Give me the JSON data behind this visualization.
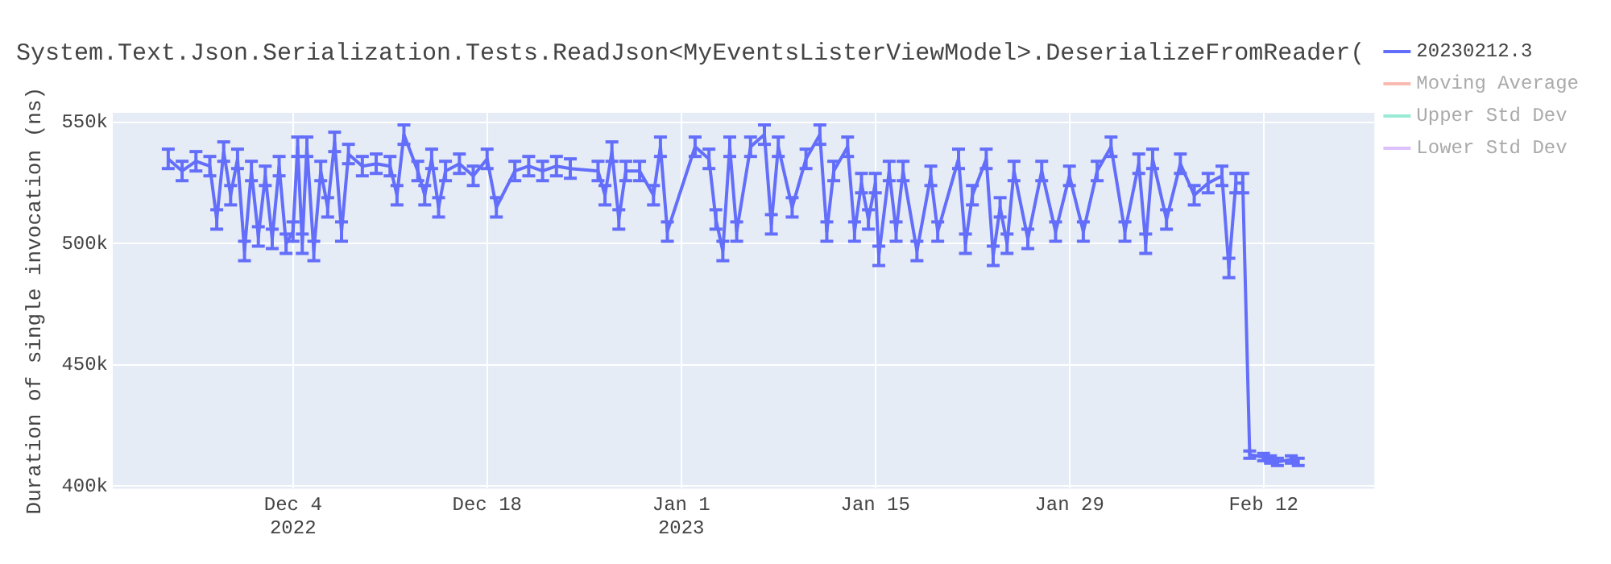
{
  "chart_data": {
    "type": "line",
    "title": "System.Text.Json.Serialization.Tests.ReadJson<MyEventsListerViewModel>.DeserializeFromReader(",
    "ylabel": "Duration of single invocation (ns)",
    "xlim": [
      "2022-11-21",
      "2023-02-20"
    ],
    "xticks": [
      {
        "value": "2022-12-04",
        "label": "Dec 4\n2022"
      },
      {
        "value": "2022-12-18",
        "label": "Dec 18"
      },
      {
        "value": "2023-01-01",
        "label": "Jan 1\n2023"
      },
      {
        "value": "2023-01-15",
        "label": "Jan 15"
      },
      {
        "value": "2023-01-29",
        "label": "Jan 29"
      },
      {
        "value": "2023-02-12",
        "label": "Feb 12"
      }
    ],
    "ylim": [
      399000,
      554000
    ],
    "yticks": [
      {
        "value": 400000,
        "label": "400k"
      },
      {
        "value": 450000,
        "label": "450k"
      },
      {
        "value": 500000,
        "label": "500k"
      },
      {
        "value": 550000,
        "label": "550k"
      }
    ],
    "grid": true,
    "legend": "right",
    "series": [
      {
        "name": "20230212.3",
        "color": "#636efa",
        "x": [
          "2022-11-25",
          "2022-11-26",
          "2022-11-27",
          "2022-11-28",
          "2022-11-28T12:00",
          "2022-11-29",
          "2022-11-29T12:00",
          "2022-11-30",
          "2022-11-30T12:00",
          "2022-12-01",
          "2022-12-01T12:00",
          "2022-12-02",
          "2022-12-02T12:00",
          "2022-12-03",
          "2022-12-03T12:00",
          "2022-12-04",
          "2022-12-04T08:00",
          "2022-12-04T16:00",
          "2022-12-05",
          "2022-12-05T12:00",
          "2022-12-06",
          "2022-12-06T12:00",
          "2022-12-07",
          "2022-12-07T12:00",
          "2022-12-08",
          "2022-12-09",
          "2022-12-10",
          "2022-12-11",
          "2022-12-11T12:00",
          "2022-12-12",
          "2022-12-13",
          "2022-12-13T12:00",
          "2022-12-14",
          "2022-12-14T12:00",
          "2022-12-15",
          "2022-12-16",
          "2022-12-17",
          "2022-12-18",
          "2022-12-18T16:00",
          "2022-12-20",
          "2022-12-21",
          "2022-12-22",
          "2022-12-23",
          "2022-12-24",
          "2022-12-26",
          "2022-12-26T12:00",
          "2022-12-27",
          "2022-12-27T12:00",
          "2022-12-28",
          "2022-12-29",
          "2022-12-30",
          "2022-12-30T12:00",
          "2022-12-31",
          "2023-01-02",
          "2023-01-03",
          "2023-01-03T12:00",
          "2023-01-04",
          "2023-01-04T12:00",
          "2023-01-05",
          "2023-01-06",
          "2023-01-07",
          "2023-01-07T12:00",
          "2023-01-08",
          "2023-01-09",
          "2023-01-10",
          "2023-01-11",
          "2023-01-11T12:00",
          "2023-01-12",
          "2023-01-13",
          "2023-01-13T12:00",
          "2023-01-14",
          "2023-01-14T12:00",
          "2023-01-15",
          "2023-01-15T06:00",
          "2023-01-16",
          "2023-01-16T12:00",
          "2023-01-17",
          "2023-01-18",
          "2023-01-19",
          "2023-01-19T12:00",
          "2023-01-21",
          "2023-01-21T12:00",
          "2023-01-22",
          "2023-01-23",
          "2023-01-23T12:00",
          "2023-01-24",
          "2023-01-24T12:00",
          "2023-01-25",
          "2023-01-26",
          "2023-01-27",
          "2023-01-28",
          "2023-01-29",
          "2023-01-30",
          "2023-01-31",
          "2023-02-01",
          "2023-02-02",
          "2023-02-03",
          "2023-02-03T12:00",
          "2023-02-04",
          "2023-02-05",
          "2023-02-06",
          "2023-02-07",
          "2023-02-08",
          "2023-02-09",
          "2023-02-09T12:00",
          "2023-02-10",
          "2023-02-10T12:00",
          "2023-02-11",
          "2023-02-12",
          "2023-02-12T12:00",
          "2023-02-13",
          "2023-02-14",
          "2023-02-14T12:00"
        ],
        "values": [
          535000,
          530000,
          534000,
          532000,
          510000,
          538000,
          520000,
          535000,
          497000,
          530000,
          503000,
          528000,
          502000,
          532000,
          500000,
          505000,
          540000,
          500000,
          540000,
          497000,
          530000,
          515000,
          542000,
          505000,
          537000,
          532000,
          533000,
          532000,
          520000,
          545000,
          530000,
          520000,
          535000,
          515000,
          530000,
          533000,
          528000,
          535000,
          515000,
          530000,
          532000,
          530000,
          532000,
          531000,
          530000,
          520000,
          538000,
          510000,
          530000,
          530000,
          520000,
          540000,
          505000,
          540000,
          535000,
          510000,
          497000,
          540000,
          505000,
          540000,
          545000,
          508000,
          540000,
          515000,
          535000,
          545000,
          505000,
          530000,
          540000,
          505000,
          525000,
          510000,
          525000,
          495000,
          530000,
          505000,
          530000,
          497000,
          528000,
          505000,
          535000,
          500000,
          520000,
          535000,
          495000,
          515000,
          500000,
          530000,
          502000,
          530000,
          505000,
          528000,
          505000,
          530000,
          540000,
          505000,
          533000,
          500000,
          535000,
          510000,
          533000,
          520000,
          525000,
          528000,
          490000,
          525000,
          525000,
          413000,
          412000,
          411000,
          410000,
          411000,
          410000
        ],
        "errors": [
          4000,
          4000,
          4000,
          4000,
          4000,
          4000,
          4000,
          4000,
          4000,
          4000,
          4000,
          4000,
          4000,
          4000,
          4000,
          4000,
          4000,
          4000,
          4000,
          4000,
          4000,
          4000,
          4000,
          4000,
          4000,
          4000,
          4000,
          4000,
          4000,
          4000,
          4000,
          4000,
          4000,
          4000,
          4000,
          4000,
          4000,
          4000,
          4000,
          4000,
          4000,
          4000,
          4000,
          4000,
          4000,
          4000,
          4000,
          4000,
          4000,
          4000,
          4000,
          4000,
          4000,
          4000,
          4000,
          4000,
          4000,
          4000,
          4000,
          4000,
          4000,
          4000,
          4000,
          4000,
          4000,
          4000,
          4000,
          4000,
          4000,
          4000,
          4000,
          4000,
          4000,
          4000,
          4000,
          4000,
          4000,
          4000,
          4000,
          4000,
          4000,
          4000,
          4000,
          4000,
          4000,
          4000,
          4000,
          4000,
          4000,
          4000,
          4000,
          4000,
          4000,
          4000,
          4000,
          4000,
          4000,
          4000,
          4000,
          4000,
          4000,
          4000,
          4000,
          4000,
          4000,
          4000,
          4000,
          1500,
          1500,
          1500,
          1500,
          1500,
          1500
        ]
      },
      {
        "name": "Moving Average",
        "color": "#ef553b"
      },
      {
        "name": "Upper Std Dev",
        "color": "#00cc96"
      },
      {
        "name": "Lower Std Dev",
        "color": "#ab63fa"
      }
    ]
  }
}
